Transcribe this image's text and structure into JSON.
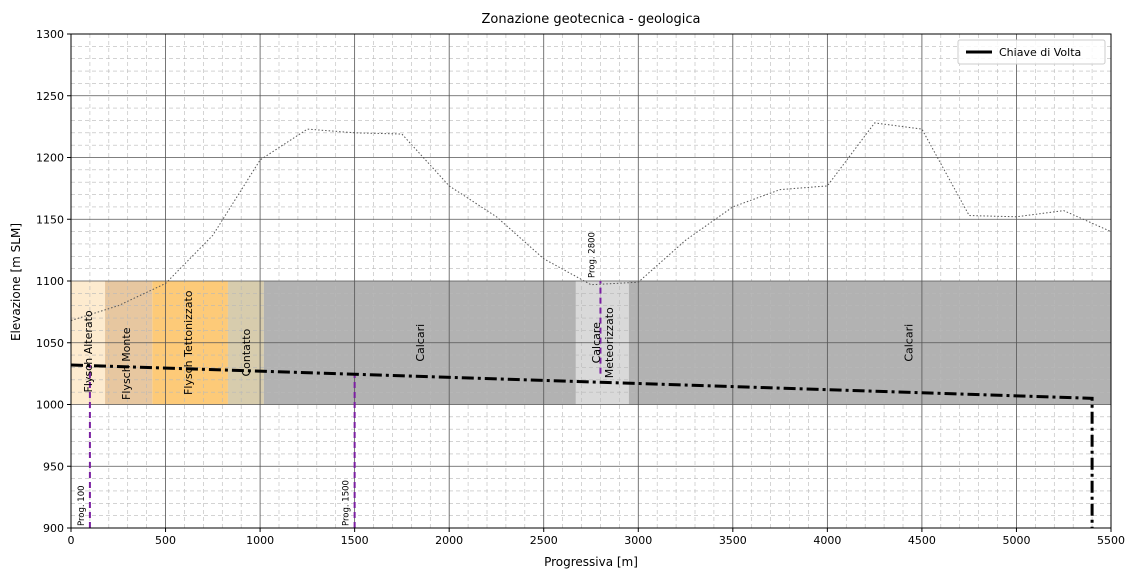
{
  "chart_data": {
    "type": "line",
    "title": "Zonazione geotecnica - geologica",
    "xlabel": "Progressiva [m]",
    "ylabel": "Elevazione [m SLM]",
    "xlim": [
      0,
      5500
    ],
    "ylim": [
      900,
      1300
    ],
    "x_ticks": [
      0,
      500,
      1000,
      1500,
      2000,
      2500,
      3000,
      3500,
      4000,
      4500,
      5000,
      5500
    ],
    "y_ticks": [
      900,
      950,
      1000,
      1050,
      1100,
      1150,
      1200,
      1250,
      1300
    ],
    "x_tick_labels": [
      "0",
      "500",
      "1000",
      "1500",
      "2000",
      "2500",
      "3000",
      "3500",
      "4000",
      "4500",
      "5000",
      "5500"
    ],
    "y_tick_labels": [
      "900",
      "950",
      "1000",
      "1050",
      "1100",
      "1150",
      "1200",
      "1250",
      "1300"
    ],
    "grid": "major solid, minor dashed",
    "legend": {
      "position": "top-right",
      "entries": [
        "Chiave di Volta"
      ]
    },
    "zones": [
      {
        "label": "Flysch Alterato",
        "x0": 0,
        "x1": 180,
        "y0": 1000,
        "y1": 1100,
        "color": "#fdebcf",
        "label_x": 90,
        "label_y": 1043
      },
      {
        "label": "Flysch Monte",
        "x0": 180,
        "x1": 430,
        "y0": 1000,
        "y1": 1100,
        "color": "#e7c7a0",
        "label_x": 290,
        "label_y": 1033
      },
      {
        "label": "Flysch Tettonizzato",
        "x0": 430,
        "x1": 830,
        "y0": 1000,
        "y1": 1100,
        "color": "#fdca78",
        "label_x": 620,
        "label_y": 1050
      },
      {
        "label": "Contatto",
        "x0": 830,
        "x1": 1020,
        "y0": 1000,
        "y1": 1100,
        "color": "#d7ccad",
        "label_x": 925,
        "label_y": 1042
      },
      {
        "label": "Calcari",
        "x0": 1020,
        "x1": 2670,
        "y0": 1000,
        "y1": 1100,
        "color": "#b2b2b2",
        "label_x": 1845,
        "label_y": 1050
      },
      {
        "label": "Calcare\nMeteorizzato",
        "x0": 2670,
        "x1": 2950,
        "y0": 1000,
        "y1": 1100,
        "color": "#d9d9d9",
        "label_x": 2810,
        "label_y": 1050
      },
      {
        "label": "Calcari",
        "x0": 2950,
        "x1": 5500,
        "y0": 1000,
        "y1": 1100,
        "color": "#b2b2b2",
        "label_x": 4430,
        "label_y": 1050
      }
    ],
    "series": [
      {
        "name": "Chiave di Volta",
        "style": "dashdot",
        "color": "#000000",
        "x": [
          0,
          5400,
          5400
        ],
        "y": [
          1032,
          1005,
          900
        ]
      },
      {
        "style": "dotted",
        "color": "#555555",
        "x": [
          0,
          250,
          500,
          750,
          1000,
          1250,
          1500,
          1750,
          2000,
          2250,
          2500,
          2750,
          3000,
          3250,
          3500,
          3750,
          4000,
          4250,
          4500,
          4750,
          5000,
          5250,
          5500
        ],
        "y": [
          1068,
          1080,
          1098,
          1137,
          1198,
          1223,
          1220,
          1219,
          1177,
          1152,
          1118,
          1097,
          1099,
          1133,
          1160,
          1174,
          1177,
          1228,
          1223,
          1153,
          1152,
          1157,
          1140
        ]
      }
    ],
    "markers": [
      {
        "label": "Prog. 100",
        "x": 100,
        "y0": 900,
        "y1": 1032,
        "color": "#7b1fa2"
      },
      {
        "label": "Prog. 1500",
        "x": 1500,
        "y0": 900,
        "y1": 1025,
        "color": "#7b1fa2"
      },
      {
        "label": "Prog. 2800",
        "x": 2800,
        "y0": 1025,
        "y1": 1100,
        "color": "#7b1fa2"
      }
    ]
  }
}
